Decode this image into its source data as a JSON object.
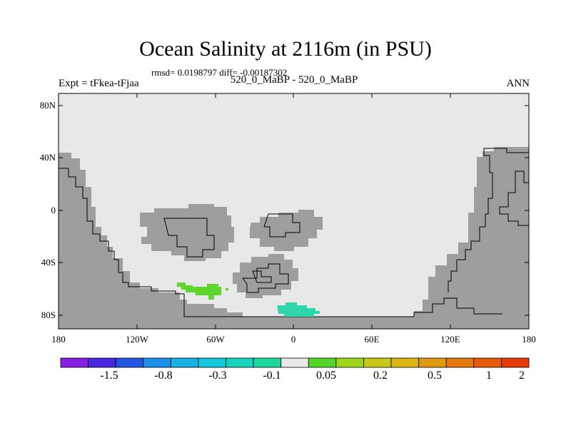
{
  "header": {
    "title": "Ocean Salinity at 2116m (in PSU)",
    "stats": "rmsd= 0.0198797 diff= -0.00187302",
    "left_label": "Expt = tFkea-tFjaa",
    "center_label": "520_0_MaBP - 520_0_MaBP",
    "right_label": "ANN"
  },
  "axes": {
    "y_ticks": [
      "80N",
      "40N",
      "0",
      "40S",
      "80S"
    ],
    "x_ticks": [
      "180",
      "120W",
      "60W",
      "0",
      "60E",
      "120E",
      "180"
    ]
  },
  "colors": {
    "land": "#9e9e9e",
    "ocean_neutral": "#e8e8e8",
    "anomaly_green": "#5ed62e",
    "anomaly_teal": "#2fd6aa"
  },
  "colorbar": {
    "colors": [
      "#8a1de3",
      "#4a28e0",
      "#2357e3",
      "#1f8ee6",
      "#19b1e3",
      "#16c8dc",
      "#17d3bb",
      "#1ed79e",
      "#e8e8e8",
      "#55d52a",
      "#9ed61c",
      "#c9c818",
      "#dbb713",
      "#e09a10",
      "#e4790c",
      "#e65a09",
      "#e33a06"
    ],
    "labels": [
      "-1.5",
      "-0.8",
      "-0.3",
      "-0.1",
      "0.05",
      "0.2",
      "0.5",
      "1",
      "2"
    ]
  }
}
